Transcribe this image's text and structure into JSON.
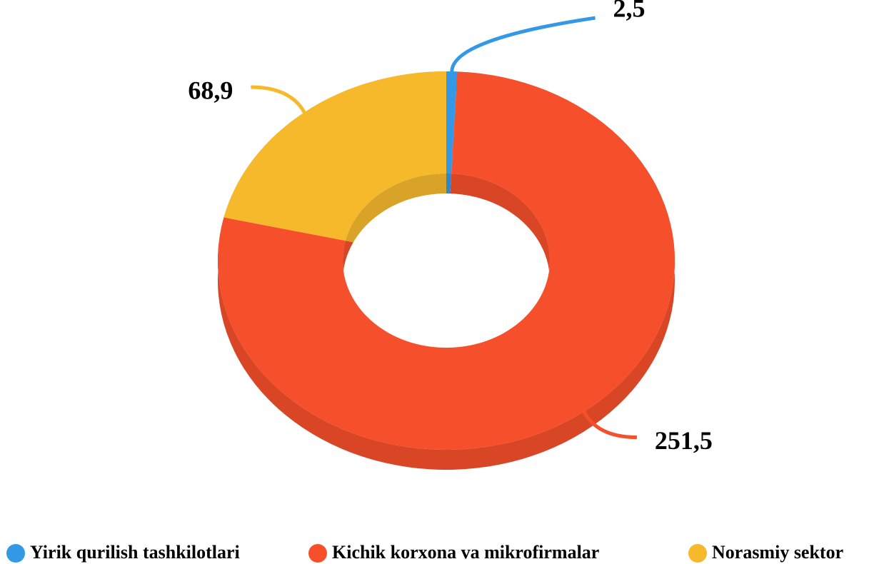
{
  "chart_data": {
    "type": "donut",
    "categories": [
      "Yirik qurilish tashkilotlari",
      "Kichik korxona va mikrofirmalar",
      "Norasmiy sektor"
    ],
    "values": [
      2.5,
      251.5,
      68.9
    ],
    "value_labels": [
      "2,5",
      "251,5",
      "68,9"
    ],
    "colors": [
      "#3399e6",
      "#f5502b",
      "#f6b92b"
    ],
    "legend": "bottom"
  }
}
